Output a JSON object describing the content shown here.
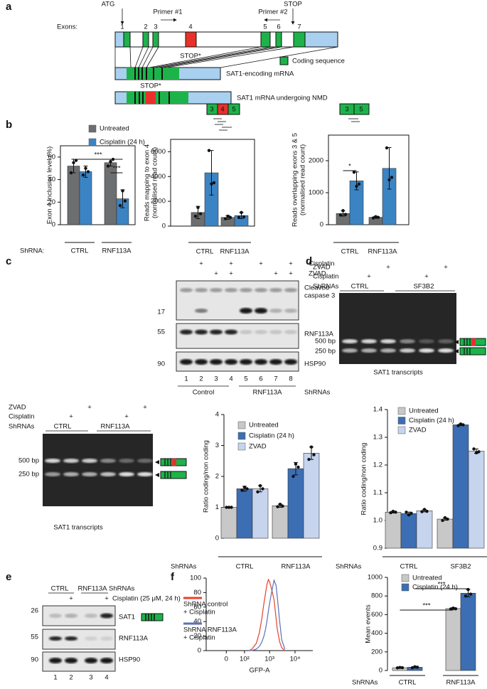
{
  "panels": {
    "a": {
      "letter": "a",
      "atg": "ATG",
      "primer1": "Primer #1",
      "primer2": "Primer #2",
      "stop": "STOP",
      "exons_label": "Exons:",
      "exon_numbers": [
        "1",
        "2",
        "3",
        "4",
        "5",
        "6",
        "7"
      ],
      "stop_star": "STOP*",
      "coding_sequence": "Coding sequence",
      "mrna": "SAT1-encoding mRNA",
      "nmd_stop": "STOP*",
      "nmd": "SAT1 mRNA undergoing NMD"
    },
    "b": {
      "letter": "b",
      "schema1": [
        "3",
        "4",
        "5"
      ],
      "schema2": [
        "3",
        "5"
      ]
    },
    "c": {
      "letter": "c",
      "rows": [
        {
          "label": "Cisplatin",
          "cells": [
            null,
            "+",
            null,
            "+",
            null,
            "+",
            null,
            "+"
          ]
        },
        {
          "label": "ZVAD",
          "cells": [
            null,
            null,
            "+",
            "+",
            null,
            null,
            "+",
            "+"
          ]
        }
      ],
      "mw": [
        "17",
        "55",
        "90"
      ],
      "bands": [
        "Cleaved\ncaspase 3",
        "RNF113A",
        "HSP90"
      ],
      "lanes": [
        "1",
        "2",
        "3",
        "4",
        "5",
        "6",
        "7",
        "8"
      ],
      "groups": [
        "Control",
        "RNF113A"
      ],
      "group_title": "ShRNAs"
    },
    "c_gel": {
      "rows": [
        {
          "label": "ZVAD",
          "cells": [
            null,
            null,
            "+",
            null,
            null,
            "+"
          ]
        },
        {
          "label": "Cisplatin",
          "cells": [
            null,
            "+",
            null,
            null,
            "+",
            null
          ]
        }
      ],
      "group_title": "ShRNAs",
      "groups": [
        "CTRL",
        "RNF113A"
      ],
      "bp": [
        "500 bp",
        "250 bp"
      ],
      "caption": "SAT1 transcripts"
    },
    "d": {
      "letter": "d",
      "rows": [
        {
          "label": "ZVAD",
          "cells": [
            null,
            null,
            "+",
            null,
            null,
            "+"
          ]
        },
        {
          "label": "Cisplatin",
          "cells": [
            null,
            "+",
            null,
            null,
            "+",
            null
          ]
        }
      ],
      "group_title": "ShRNAs",
      "groups": [
        "CTRL",
        "SF3B2"
      ],
      "bp": [
        "500 bp",
        "250 bp"
      ],
      "caption": "SAT1 transcripts"
    },
    "e": {
      "letter": "e",
      "groups": [
        "CTRL",
        "RNF113A"
      ],
      "group_title": "ShRNAs",
      "rows": [
        {
          "label": "Cisplatin (25 μM, 24 h)",
          "cells": [
            null,
            "+",
            null,
            "+"
          ]
        }
      ],
      "mw": [
        "26",
        "55",
        "90"
      ],
      "bands": [
        "SAT1",
        "RNF113A",
        "HSP90"
      ],
      "lanes": [
        "1",
        "2",
        "3",
        "4"
      ]
    },
    "f": {
      "letter": "f"
    }
  },
  "chart_data": [
    {
      "type": "bar",
      "ylabel": "Exon 4 Inclusion level (%)",
      "xlabel": "ShRNA:",
      "categories": [
        "CTRL",
        "RNF113A"
      ],
      "series": [
        {
          "name": "Untreated",
          "color": "#6d6e70",
          "values": [
            52,
            55
          ],
          "errors": [
            6,
            3
          ],
          "points": [
            [
              46,
              55,
              57
            ],
            [
              52,
              56,
              58
            ]
          ]
        },
        {
          "name": "Cisplatin (24 h)",
          "color": "#3b84c4",
          "values": [
            47,
            23
          ],
          "errors": [
            5,
            8
          ],
          "points": [
            [
              44,
              50,
              47
            ],
            [
              17,
              30,
              21
            ]
          ]
        }
      ],
      "ylim": [
        0,
        70
      ],
      "yticks": [
        0,
        20,
        40,
        60
      ],
      "annotations": [
        "***",
        "***"
      ]
    },
    {
      "type": "bar",
      "ylabel": "Reads mapping to exon 4\n(normalised read count)",
      "categories": [
        "CTRL",
        "RNF113A"
      ],
      "series": [
        {
          "color": "#6d6e70",
          "values": [
            1100,
            700
          ],
          "errors": [
            500,
            150
          ],
          "points": [
            [
              800,
              1500,
              1000
            ],
            [
              600,
              800,
              700
            ]
          ]
        },
        {
          "color": "#3b84c4",
          "values": [
            4300,
            850
          ],
          "errors": [
            1800,
            250
          ],
          "points": [
            [
              6100,
              3400,
              3500
            ],
            [
              700,
              1100,
              750
            ]
          ]
        }
      ],
      "ylim": [
        0,
        7000
      ],
      "yticks": [
        0,
        2000,
        4000,
        6000
      ]
    },
    {
      "type": "bar",
      "ylabel": "Reads overlapping exons 3 & 5\n(normalised read count)",
      "categories": [
        "CTRL",
        "RNF113A"
      ],
      "series": [
        {
          "color": "#6d6e70",
          "values": [
            350,
            230
          ],
          "errors": [
            80,
            30
          ],
          "points": [
            [
              300,
              440,
              320
            ],
            [
              210,
              250,
              230
            ]
          ]
        },
        {
          "color": "#3b84c4",
          "values": [
            1370,
            1760
          ],
          "errors": [
            280,
            650
          ],
          "points": [
            [
              1640,
              1200,
              1270
            ],
            [
              2400,
              1400,
              1480
            ]
          ]
        }
      ],
      "ylim": [
        0,
        2800
      ],
      "yticks": [
        0,
        1000,
        2000
      ],
      "annotations": [
        "*"
      ]
    },
    {
      "type": "bar",
      "ylabel": "Ratio coding/non coding",
      "xlabel": "ShRNAs",
      "categories": [
        "CTRL",
        "RNF113A"
      ],
      "series": [
        {
          "name": "Untreated",
          "color": "#c8c8c8",
          "values": [
            1,
            1.05
          ],
          "errors": [
            0.02,
            0.05
          ],
          "points": [
            [
              1,
              1,
              1
            ],
            [
              1.02,
              1.1,
              1.04
            ]
          ]
        },
        {
          "name": "Cisplatin (24 h)",
          "color": "#3c6eb4",
          "values": [
            1.6,
            2.25
          ],
          "errors": [
            0.08,
            0.2
          ],
          "points": [
            [
              1.55,
              1.65,
              1.6
            ],
            [
              2.0,
              2.4,
              2.3
            ]
          ]
        },
        {
          "name": "ZVAD",
          "color": "#c6d4ee",
          "values": [
            1.6,
            2.75
          ],
          "errors": [
            0.1,
            0.2
          ],
          "points": [
            [
              1.5,
              1.7,
              1.6
            ],
            [
              2.55,
              2.95,
              2.7
            ]
          ]
        }
      ],
      "ylim": [
        0,
        4
      ],
      "yticks": [
        0,
        1,
        2,
        3,
        4
      ]
    },
    {
      "type": "bar",
      "ylabel": "Ratio coding/non coding",
      "xlabel": "ShRNAs",
      "categories": [
        "CTRL",
        "SF3B2"
      ],
      "series": [
        {
          "name": "Untreated",
          "color": "#c8c8c8",
          "values": [
            1.03,
            1.005
          ],
          "errors": [
            0.003,
            0.004
          ],
          "points": [
            [
              1.028,
              1.033,
              1.03
            ],
            [
              1.0,
              1.01,
              1.005
            ]
          ]
        },
        {
          "name": "Cisplatin (24 h)",
          "color": "#3c6eb4",
          "values": [
            1.025,
            1.345
          ],
          "errors": [
            0.005,
            0.003
          ],
          "points": [
            [
              1.03,
              1.02,
              1.026
            ],
            [
              1.342,
              1.348,
              1.345
            ]
          ]
        },
        {
          "name": "ZVAD",
          "color": "#c6d4ee",
          "values": [
            1.035,
            1.25
          ],
          "errors": [
            0.004,
            0.008
          ],
          "points": [
            [
              1.032,
              1.04,
              1.033
            ],
            [
              1.258,
              1.244,
              1.248
            ]
          ]
        }
      ],
      "ylim": [
        0.9,
        1.4
      ],
      "yticks": [
        0.9,
        {
          "value": 1,
          "label": "1.0"
        },
        1.1,
        1.2,
        1.3,
        1.4
      ]
    },
    {
      "type": "bar",
      "ylabel": "Mean events",
      "xlabel": "ShRNAs",
      "categories": [
        "CTRL",
        "RNF113A"
      ],
      "series": [
        {
          "name": "Untreated",
          "color": "#c8c8c8",
          "values": [
            30,
            665
          ],
          "errors": [
            5,
            10
          ],
          "points": [
            [
              28,
              33,
              30
            ],
            [
              660,
              670,
              663
            ]
          ]
        },
        {
          "name": "Cisplatin (24 h)",
          "color": "#3c6eb4",
          "values": [
            35,
            830
          ],
          "errors": [
            5,
            40
          ],
          "points": [
            [
              30,
              40,
              36
            ],
            [
              800,
              870,
              820
            ]
          ]
        }
      ],
      "ylim": [
        0,
        1000
      ],
      "yticks": [
        0,
        200,
        400,
        600,
        800,
        1000
      ],
      "annotations": [
        "***",
        "***"
      ]
    },
    {
      "type": "line",
      "xlabel": "GFP-A",
      "xscale": "biexponential",
      "x": [
        150,
        200,
        300,
        400,
        500,
        600,
        700,
        800,
        900,
        1000,
        1200,
        1500,
        1800,
        2000,
        2500,
        3000,
        4000
      ],
      "series": [
        {
          "name": "ShRNA control\n+ Cisplatin",
          "color": "#e8412c",
          "values": [
            0,
            2,
            10,
            25,
            45,
            65,
            80,
            92,
            98,
            95,
            85,
            70,
            45,
            30,
            12,
            4,
            0
          ]
        },
        {
          "name": "ShRNA RNF113A\n+ Cisplatin",
          "color": "#5b6fb8",
          "values": [
            0,
            0,
            2,
            6,
            12,
            20,
            30,
            42,
            55,
            65,
            80,
            97,
            90,
            75,
            40,
            15,
            2
          ]
        }
      ],
      "xlim": [
        -120,
        50000
      ],
      "xticks": [
        0,
        {
          "value": 100,
          "label": "10²"
        },
        {
          "value": 1000,
          "label": "10³"
        },
        {
          "value": 10000,
          "label": "10⁴"
        }
      ],
      "ylim": [
        0,
        100
      ],
      "yticks": [
        0,
        20,
        40,
        60,
        80,
        100
      ]
    }
  ]
}
